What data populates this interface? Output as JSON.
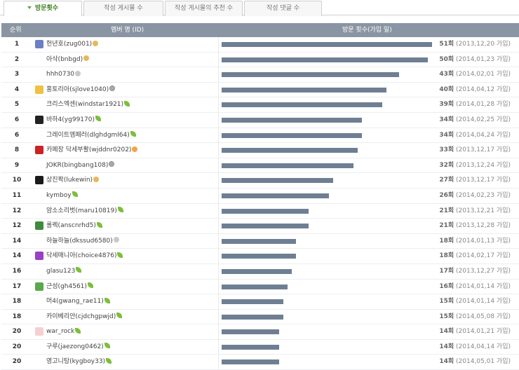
{
  "tabs": [
    {
      "label": "방문횟수",
      "active": true
    },
    {
      "label": "작성 게시물 수",
      "active": false
    },
    {
      "label": "작성 게시물의 추천 수",
      "active": false
    },
    {
      "label": "작성 댓글 수",
      "active": false
    }
  ],
  "header": {
    "rank": "순위",
    "member": "멤버 명 (ID)",
    "visits": "방문 횟수(가입 일)"
  },
  "max_visits": 51,
  "rows": [
    {
      "rank": "1",
      "member": "헌년호(zug001)",
      "level": "bag",
      "avatar": "#6b7fc4",
      "visits": 51,
      "count": "51회",
      "joined": "(2013,12,20 가입)"
    },
    {
      "rank": "2",
      "member": "아삭(bnbgd)",
      "level": "bag",
      "avatar": "",
      "visits": 50,
      "count": "50회",
      "joined": "(2014,01,23 가입)"
    },
    {
      "rank": "3",
      "member": "hhh0730",
      "level": "egg",
      "avatar": "",
      "visits": 43,
      "count": "43회",
      "joined": "(2014,02,01 가입)"
    },
    {
      "rank": "4",
      "member": "홍토리아(sjlove1040)",
      "level": "gear",
      "avatar": "#f0c040",
      "visits": 40,
      "count": "40회",
      "joined": "(2014,04,12 가입)"
    },
    {
      "rank": "5",
      "member": "크리스엑센(windstar1921)",
      "level": "sprout",
      "avatar": "",
      "visits": 39,
      "count": "39회",
      "joined": "(2014,01,28 가입)"
    },
    {
      "rank": "6",
      "member": "바하4(yg99170)",
      "level": "sprout",
      "avatar": "#222222",
      "visits": 34,
      "count": "34회",
      "joined": "(2014,02,25 가입)"
    },
    {
      "rank": "6",
      "member": "그레이트엠페러(dlghdgml64)",
      "level": "sprout",
      "avatar": "",
      "visits": 34,
      "count": "34회",
      "joined": "(2014,04,24 가입)"
    },
    {
      "rank": "8",
      "member": "카페장 닥세부활(wjddnr0202)",
      "level": "star",
      "avatar": "#cc2222",
      "visits": 33,
      "count": "33회",
      "joined": "(2013,12,17 가입)"
    },
    {
      "rank": "9",
      "member": "JOKR(bingbang108)",
      "level": "gear",
      "avatar": "",
      "visits": 32,
      "count": "32회",
      "joined": "(2013,12,24 가입)"
    },
    {
      "rank": "10",
      "member": "상진팍(lukewin)",
      "level": "bag",
      "avatar": "#1a1a1a",
      "visits": 27,
      "count": "27회",
      "joined": "(2013,12,17 가입)"
    },
    {
      "rank": "11",
      "member": "kymboy",
      "level": "sprout",
      "avatar": "",
      "visits": 26,
      "count": "26회",
      "joined": "(2014,02,23 가입)"
    },
    {
      "rank": "12",
      "member": "암소소리벗(maru10819)",
      "level": "sprout",
      "avatar": "",
      "visits": 21,
      "count": "21회",
      "joined": "(2013,12,21 가입)"
    },
    {
      "rank": "12",
      "member": "롤렉(anscnrhd5)",
      "level": "sprout",
      "avatar": "#3d8b3d",
      "visits": 21,
      "count": "21회",
      "joined": "(2013,12,28 가입)"
    },
    {
      "rank": "14",
      "member": "하늘하늘(dkssud6580)",
      "level": "egg",
      "avatar": "",
      "visits": 18,
      "count": "18회",
      "joined": "(2014,01,13 가입)"
    },
    {
      "rank": "14",
      "member": "닥세매니아(choice4876)",
      "level": "sprout",
      "avatar": "#9b3fc4",
      "visits": 18,
      "count": "18회",
      "joined": "(2014,02,17 가입)"
    },
    {
      "rank": "16",
      "member": "glasu123",
      "level": "sprout",
      "avatar": "",
      "visits": 17,
      "count": "17회",
      "joined": "(2013,12,27 가입)"
    },
    {
      "rank": "17",
      "member": "근성(gh4561)",
      "level": "sprout",
      "avatar": "#5aa84a",
      "visits": 16,
      "count": "16회",
      "joined": "(2014,01,14 가입)"
    },
    {
      "rank": "18",
      "member": "머4(gwang_rae11)",
      "level": "sprout",
      "avatar": "",
      "visits": 15,
      "count": "15회",
      "joined": "(2014,01,14 가입)"
    },
    {
      "rank": "18",
      "member": "카이베리안(cjdchgpwjd)",
      "level": "sprout",
      "avatar": "",
      "visits": 15,
      "count": "15회",
      "joined": "(2014,05,08 가입)"
    },
    {
      "rank": "20",
      "member": "war_rock",
      "level": "sprout",
      "avatar": "#f5d0d0",
      "visits": 14,
      "count": "14회",
      "joined": "(2014,01,21 가입)"
    },
    {
      "rank": "20",
      "member": "구루(jaezong0462)",
      "level": "sprout",
      "avatar": "",
      "visits": 14,
      "count": "14회",
      "joined": "(2014,04,14 가입)"
    },
    {
      "rank": "20",
      "member": "영고니탕(kygboy33)",
      "level": "sprout",
      "avatar": "",
      "visits": 14,
      "count": "14회",
      "joined": "(2014,05,01 가입)"
    }
  ]
}
